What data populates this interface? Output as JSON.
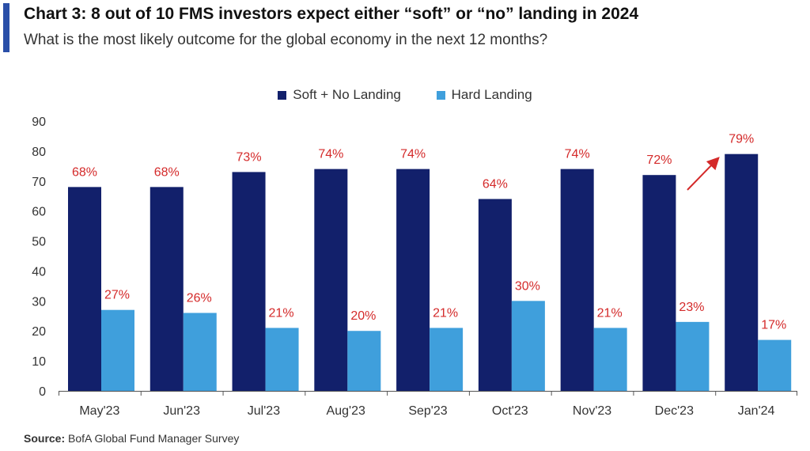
{
  "header": {
    "title": "Chart 3: 8 out of 10 FMS investors expect either “soft” or “no” landing in 2024",
    "subtitle": "What is the most likely outcome for the global economy in the next 12 months?"
  },
  "footer": {
    "source_label": "Source:",
    "source_text": "BofA Global Fund Manager Survey"
  },
  "colors": {
    "soft": "#12206b",
    "hard": "#3f9fdc",
    "label": "#d42a2a",
    "accent": "#2a4fa8"
  },
  "chart_data": {
    "type": "bar",
    "categories": [
      "May'23",
      "Jun'23",
      "Jul'23",
      "Aug'23",
      "Sep'23",
      "Oct'23",
      "Nov'23",
      "Dec'23",
      "Jan'24"
    ],
    "series": [
      {
        "name": "Soft + No Landing",
        "values": [
          68,
          68,
          73,
          74,
          74,
          64,
          74,
          72,
          79
        ],
        "labels": [
          "68%",
          "68%",
          "73%",
          "74%",
          "74%",
          "64%",
          "74%",
          "72%",
          "79%"
        ]
      },
      {
        "name": "Hard Landing",
        "values": [
          27,
          26,
          21,
          20,
          21,
          30,
          21,
          23,
          17
        ],
        "labels": [
          "27%",
          "26%",
          "21%",
          "20%",
          "21%",
          "30%",
          "21%",
          "23%",
          "17%"
        ]
      }
    ],
    "yticks": [
      "0",
      "10",
      "20",
      "30",
      "40",
      "50",
      "60",
      "70",
      "80",
      "90"
    ],
    "ylim": [
      0,
      90
    ],
    "legend_position": "top-center",
    "annotation": "upward arrow before Jan'24 bar"
  }
}
